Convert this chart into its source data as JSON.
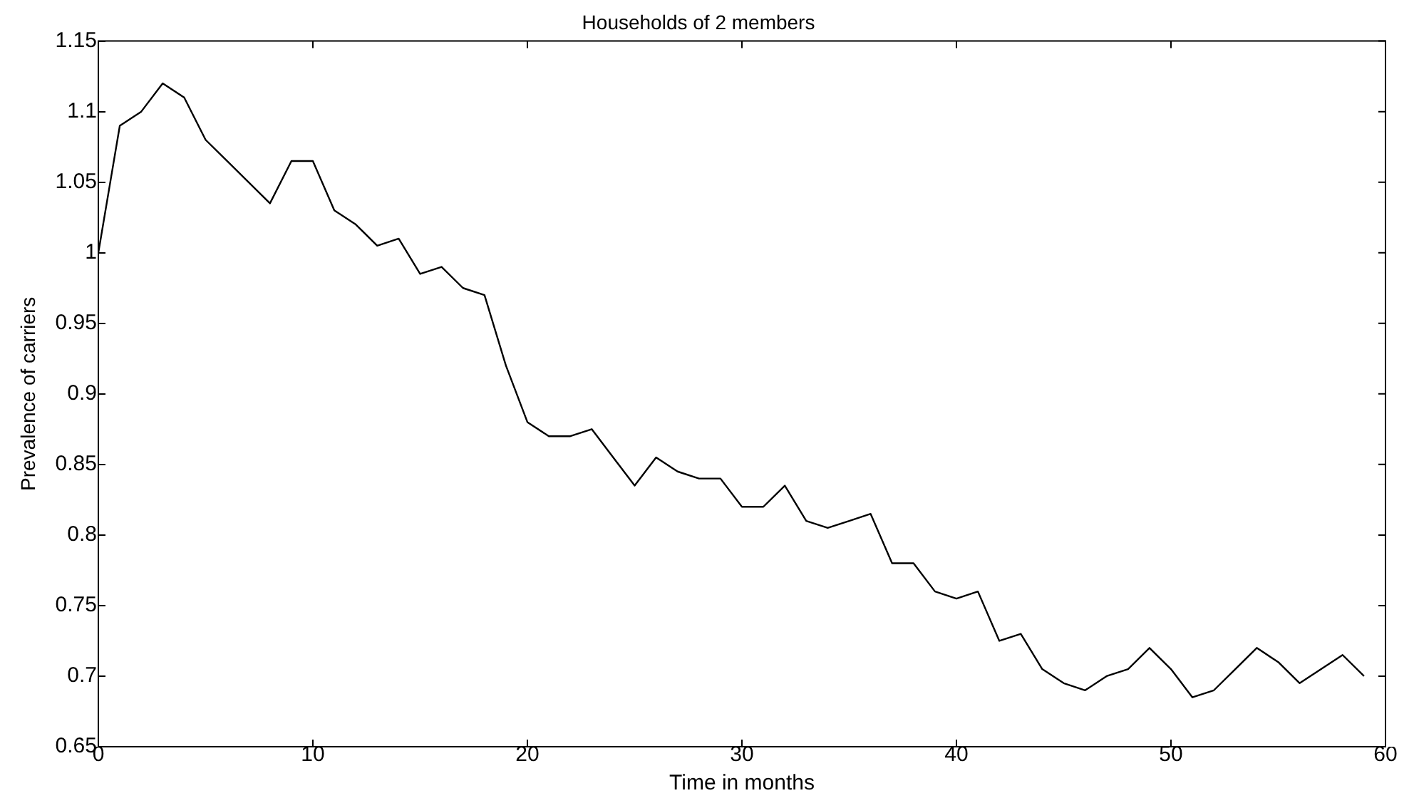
{
  "chart_data": {
    "type": "line",
    "title": "Households of 2 members",
    "xlabel": "Time in months",
    "ylabel": "Prevalence of carriers",
    "x": [
      0,
      1,
      2,
      3,
      4,
      5,
      6,
      7,
      8,
      9,
      10,
      11,
      12,
      13,
      14,
      15,
      16,
      17,
      18,
      19,
      20,
      21,
      22,
      23,
      24,
      25,
      26,
      27,
      28,
      29,
      30,
      31,
      32,
      33,
      34,
      35,
      36,
      37,
      38,
      39,
      40,
      41,
      42,
      43,
      44,
      45,
      46,
      47,
      48,
      49,
      50,
      51,
      52,
      53,
      54,
      55,
      56,
      57,
      58,
      59
    ],
    "series": [
      {
        "color": "#000000",
        "values": [
          1.0,
          1.09,
          1.1,
          1.12,
          1.11,
          1.08,
          1.065,
          1.05,
          1.035,
          1.065,
          1.065,
          1.03,
          1.02,
          1.005,
          1.01,
          0.985,
          0.99,
          0.975,
          0.97,
          0.92,
          0.88,
          0.87,
          0.87,
          0.875,
          0.855,
          0.835,
          0.855,
          0.845,
          0.84,
          0.84,
          0.82,
          0.82,
          0.835,
          0.81,
          0.805,
          0.81,
          0.815,
          0.78,
          0.78,
          0.76,
          0.755,
          0.76,
          0.725,
          0.73,
          0.705,
          0.695,
          0.69,
          0.7,
          0.705,
          0.72,
          0.705,
          0.685,
          0.69,
          0.705,
          0.72,
          0.71,
          0.695,
          0.705,
          0.715,
          0.7
        ]
      }
    ],
    "xlim": [
      0,
      60
    ],
    "xticks": [
      0,
      10,
      20,
      30,
      40,
      50,
      60
    ],
    "ylim": [
      0.65,
      1.15
    ],
    "yticks": [
      0.65,
      0.7,
      0.75,
      0.8,
      0.85,
      0.9,
      0.95,
      1,
      1.05,
      1.1,
      1.15
    ],
    "grid": false,
    "legend": false,
    "marker": "none",
    "line_style": "solid"
  }
}
